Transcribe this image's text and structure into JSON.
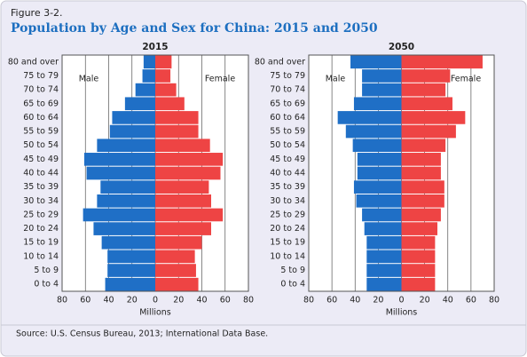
{
  "figure_label": "Figure 3-2.",
  "title": "Population by Age and Sex for China: 2015 and 2050",
  "source": "Source: U.S. Census Bureau, 2013; International Data Base.",
  "chart_data": [
    {
      "type": "pyramid",
      "title": "2015",
      "x_label": "Millions",
      "categories": [
        "80 and over",
        "75 to 79",
        "70 to 74",
        "65 to 69",
        "60 to 64",
        "55 to 59",
        "50 to 54",
        "45 to 49",
        "40 to 44",
        "35 to 39",
        "30 to 34",
        "25 to 29",
        "20 to 24",
        "15 to 19",
        "10 to 14",
        "5 to 9",
        "0 to 4"
      ],
      "series": [
        {
          "name": "Male",
          "color": "#1f6fc6",
          "side": "left",
          "values": [
            10,
            11,
            17,
            26,
            37,
            39,
            50,
            61,
            59,
            47,
            50,
            62,
            53,
            46,
            41,
            41,
            43
          ]
        },
        {
          "name": "Female",
          "color": "#ee4444",
          "side": "right",
          "values": [
            14,
            13,
            18,
            25,
            37,
            37,
            47,
            58,
            56,
            46,
            48,
            58,
            48,
            40,
            34,
            35,
            37
          ]
        }
      ],
      "xlim": [
        -80,
        80
      ],
      "xticks": [
        {
          "value": -80,
          "label": "80"
        },
        {
          "value": -60,
          "label": "60"
        },
        {
          "value": -40,
          "label": "40"
        },
        {
          "value": -20,
          "label": "20"
        },
        0,
        20,
        40,
        60,
        80
      ],
      "grid": true
    },
    {
      "type": "pyramid",
      "title": "2050",
      "x_label": "Millions",
      "categories": [
        "80 and over",
        "75 to 79",
        "70 to 74",
        "65 to 69",
        "60 to 64",
        "55 to 59",
        "50 to 54",
        "45 to 49",
        "40 to 44",
        "35 to 39",
        "30 to 34",
        "25 to 29",
        "20 to 24",
        "15 to 19",
        "10 to 14",
        "5 to 9",
        "0 to 4"
      ],
      "series": [
        {
          "name": "Male",
          "color": "#1f6fc6",
          "side": "left",
          "values": [
            44,
            34,
            34,
            41,
            55,
            48,
            42,
            38,
            38,
            41,
            39,
            34,
            32,
            30,
            30,
            30,
            30
          ]
        },
        {
          "name": "Female",
          "color": "#ee4444",
          "side": "right",
          "values": [
            70,
            42,
            38,
            44,
            55,
            47,
            38,
            34,
            34,
            37,
            37,
            34,
            31,
            29,
            29,
            29,
            29
          ]
        }
      ],
      "xlim": [
        -80,
        80
      ],
      "xticks": [
        {
          "value": -80,
          "label": "80"
        },
        {
          "value": -60,
          "label": "60"
        },
        {
          "value": -40,
          "label": "40"
        },
        {
          "value": -20,
          "label": "20"
        },
        0,
        20,
        40,
        60,
        80
      ],
      "grid": true
    }
  ]
}
